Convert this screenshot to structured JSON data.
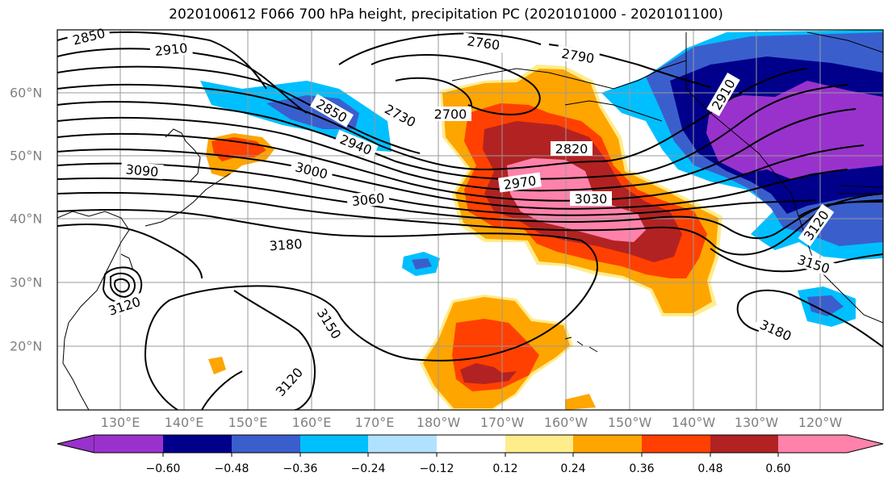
{
  "title": "2020100612 F066 700 hPa height, precipitation PC (2020101000 - 2020101100)",
  "lat_labels": [
    "60°N",
    "50°N",
    "40°N",
    "30°N",
    "20°N"
  ],
  "lon_labels": [
    "130°E",
    "140°E",
    "150°E",
    "160°E",
    "170°E",
    "180°W",
    "170°W",
    "160°W",
    "150°W",
    "140°W",
    "130°W",
    "120°W"
  ],
  "contour_labels": [
    "2850",
    "2910",
    "2760",
    "2790",
    "2850",
    "2730",
    "2700",
    "2940",
    "3000",
    "2820",
    "2970",
    "3030",
    "3090",
    "3060",
    "3180",
    "3120",
    "3120",
    "3150",
    "3150",
    "3180",
    "3120",
    "2910"
  ],
  "colorbar": {
    "ticks": [
      "−0.60",
      "−0.48",
      "−0.36",
      "−0.24",
      "−0.12",
      "0.12",
      "0.24",
      "0.36",
      "0.48",
      "0.60"
    ],
    "colors": [
      "#9932CC",
      "#00008B",
      "#3A5FCD",
      "#00BFFF",
      "#B0E2FF",
      "#FFFFFF",
      "#FFEC8B",
      "#FFA500",
      "#FF4000",
      "#B22222",
      "#FF82AB"
    ]
  }
}
